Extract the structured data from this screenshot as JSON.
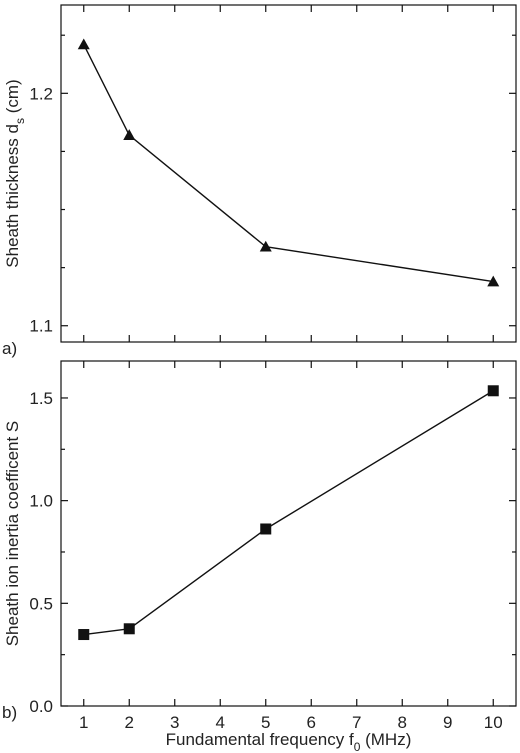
{
  "chart_data": [
    {
      "type": "line",
      "panel_label": "a)",
      "marker": "triangle",
      "ylabel": "Sheath thickness d",
      "ylabel_subscript": "s",
      "ylabel_suffix": " (cm)",
      "xlabel": "",
      "xlim": [
        0.5,
        10.5
      ],
      "ylim": [
        1.093,
        1.238
      ],
      "y_ticks_labeled": [
        1.1,
        1.2
      ],
      "y_tick_labels": [
        "1.1",
        "1.2"
      ],
      "y_ticks_minor": [
        1.1,
        1.125,
        1.15,
        1.175,
        1.2,
        1.225
      ],
      "x_ticks": [
        1,
        2,
        3,
        4,
        5,
        6,
        7,
        8,
        9,
        10
      ],
      "x": [
        1,
        2,
        5,
        10
      ],
      "y": [
        1.221,
        1.182,
        1.134,
        1.119
      ],
      "grid": false,
      "legend": "none"
    },
    {
      "type": "line",
      "panel_label": "b)",
      "marker": "square",
      "ylabel": "Sheath ion inertia coefficent S",
      "xlabel": "Fundamental frequency f",
      "xlabel_subscript": "0",
      "xlabel_suffix": " (MHz)",
      "xlim": [
        0.5,
        10.5
      ],
      "ylim": [
        0.0,
        1.68
      ],
      "y_ticks_labeled": [
        0.0,
        0.5,
        1.0,
        1.5
      ],
      "y_tick_labels": [
        "0.0",
        "0.5",
        "1.0",
        "1.5"
      ],
      "y_ticks_minor": [
        0.0,
        0.25,
        0.5,
        0.75,
        1.0,
        1.25,
        1.5
      ],
      "x_ticks": [
        1,
        2,
        3,
        4,
        5,
        6,
        7,
        8,
        9,
        10
      ],
      "x_tick_labels": [
        "1",
        "2",
        "3",
        "4",
        "5",
        "6",
        "7",
        "8",
        "9",
        "10"
      ],
      "x": [
        1,
        2,
        5,
        10
      ],
      "y": [
        0.348,
        0.376,
        0.862,
        1.535
      ],
      "grid": false,
      "legend": "none"
    }
  ]
}
